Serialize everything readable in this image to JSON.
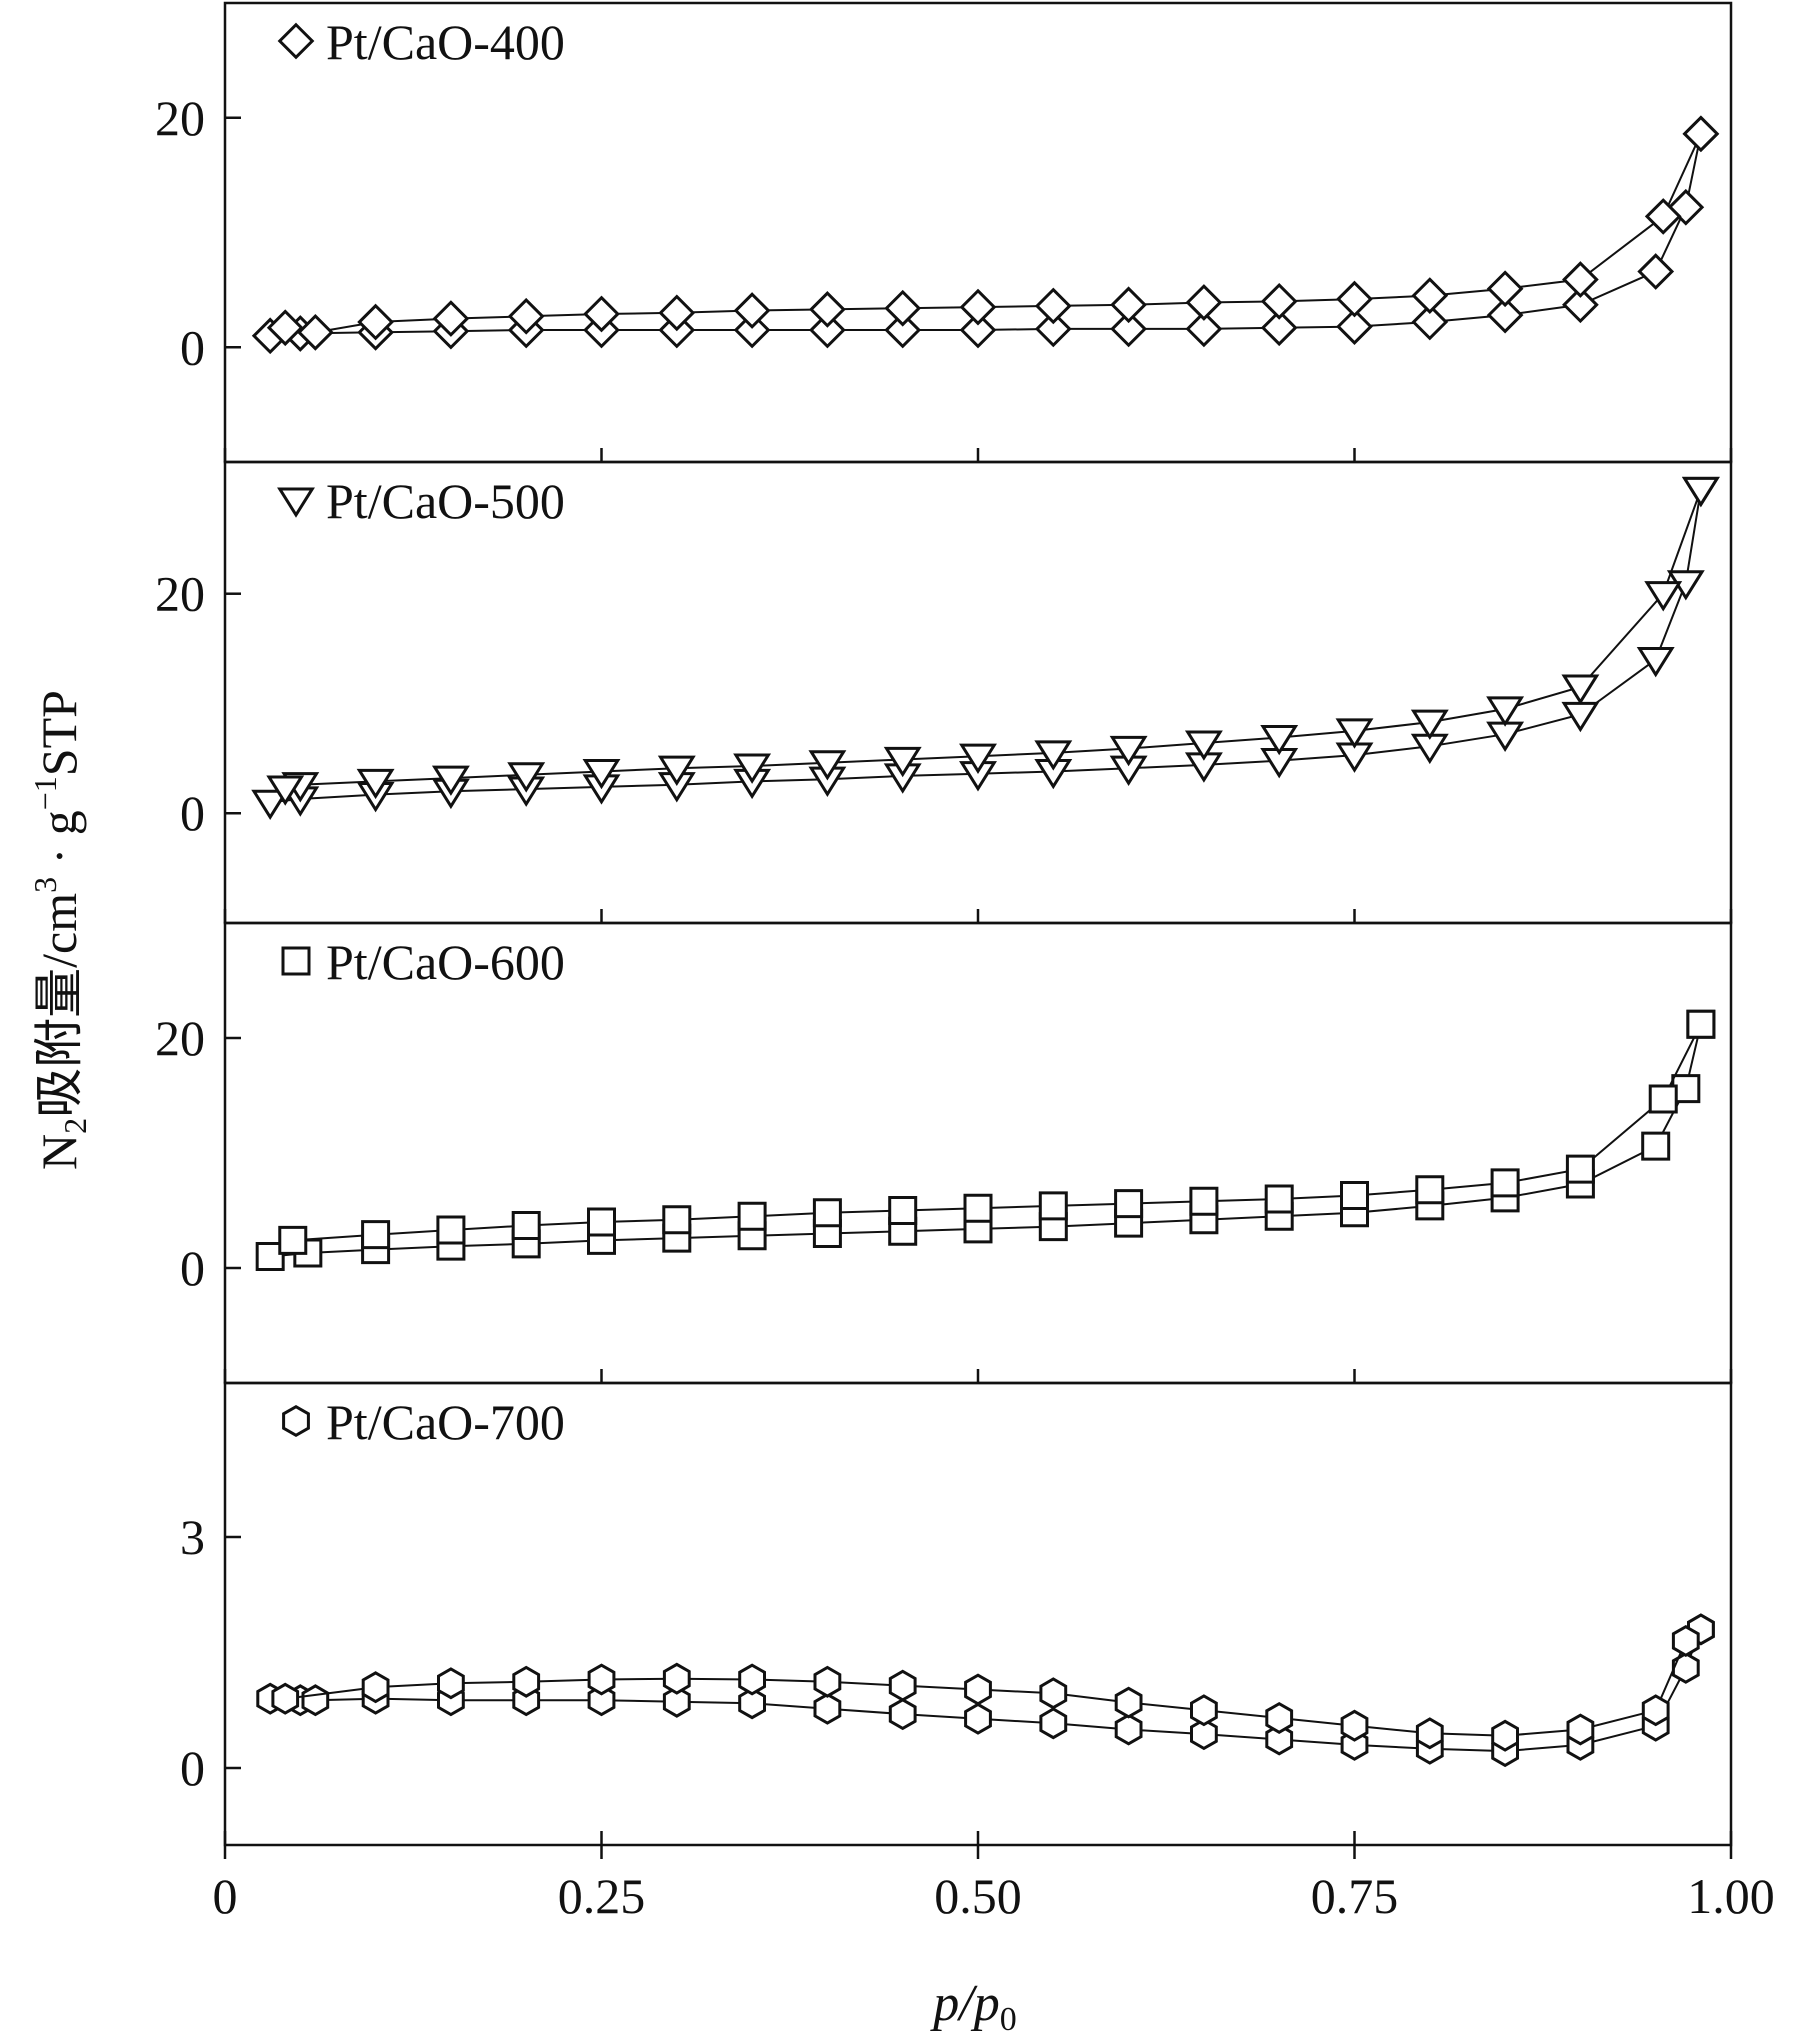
{
  "chart_data": {
    "type": "scatter",
    "xlabel": "p/p",
    "xlabel_sub": "0",
    "ylabel": {
      "n": "N",
      "n_sub": "2",
      "text": "吸附量/cm",
      "cm_exp": "3",
      "mid": " · g",
      "g_exp": "−1",
      "tail": "STP"
    },
    "xlim": [
      0,
      1.0
    ],
    "xticks": [
      0,
      0.25,
      0.5,
      0.75,
      1.0
    ],
    "xtick_labels": [
      "0",
      "0.25",
      "0.50",
      "0.75",
      "1.00"
    ],
    "panels": [
      {
        "name": "Pt/CaO-400",
        "marker": "diamond",
        "ylim": [
          -10,
          30
        ],
        "yticks": [
          0,
          20
        ],
        "ytick_labels": [
          "0",
          "20"
        ],
        "adsorption": {
          "x": [
            0.03,
            0.05,
            0.1,
            0.15,
            0.2,
            0.25,
            0.3,
            0.35,
            0.4,
            0.45,
            0.5,
            0.55,
            0.6,
            0.65,
            0.7,
            0.75,
            0.8,
            0.85,
            0.9,
            0.95,
            0.97,
            0.98
          ],
          "y": [
            1.0,
            1.2,
            1.3,
            1.4,
            1.5,
            1.5,
            1.5,
            1.5,
            1.5,
            1.5,
            1.5,
            1.6,
            1.6,
            1.6,
            1.7,
            1.8,
            2.2,
            2.8,
            3.7,
            6.6,
            12.2,
            18.6
          ]
        },
        "desorption": {
          "x": [
            0.98,
            0.955,
            0.9,
            0.85,
            0.8,
            0.75,
            0.7,
            0.65,
            0.6,
            0.55,
            0.5,
            0.45,
            0.4,
            0.35,
            0.3,
            0.25,
            0.2,
            0.15,
            0.1,
            0.06,
            0.04
          ],
          "y": [
            18.6,
            11.4,
            5.9,
            5.1,
            4.5,
            4.2,
            4.0,
            3.9,
            3.7,
            3.6,
            3.5,
            3.4,
            3.3,
            3.2,
            3.0,
            2.9,
            2.7,
            2.5,
            2.2,
            1.3,
            1.7
          ]
        }
      },
      {
        "name": "Pt/CaO-500",
        "marker": "triangle-down",
        "ylim": [
          -10,
          32
        ],
        "yticks": [
          0,
          20
        ],
        "ytick_labels": [
          "0",
          "20"
        ],
        "adsorption": {
          "x": [
            0.03,
            0.05,
            0.1,
            0.15,
            0.2,
            0.25,
            0.3,
            0.35,
            0.4,
            0.45,
            0.5,
            0.55,
            0.6,
            0.65,
            0.7,
            0.75,
            0.8,
            0.85,
            0.9,
            0.95,
            0.97,
            0.98
          ],
          "y": [
            1.0,
            1.3,
            1.7,
            2.0,
            2.2,
            2.4,
            2.6,
            2.9,
            3.1,
            3.4,
            3.6,
            3.8,
            4.1,
            4.4,
            4.8,
            5.3,
            6.1,
            7.2,
            9.0,
            14.0,
            21.0,
            29.5
          ]
        },
        "desorption": {
          "x": [
            0.98,
            0.955,
            0.9,
            0.85,
            0.8,
            0.75,
            0.7,
            0.65,
            0.6,
            0.55,
            0.5,
            0.45,
            0.4,
            0.35,
            0.3,
            0.25,
            0.2,
            0.15,
            0.1,
            0.05,
            0.04
          ],
          "y": [
            29.5,
            20.0,
            11.5,
            9.5,
            8.3,
            7.5,
            6.9,
            6.4,
            5.9,
            5.5,
            5.2,
            4.9,
            4.6,
            4.3,
            4.1,
            3.8,
            3.5,
            3.2,
            2.9,
            2.6,
            2.3
          ]
        }
      },
      {
        "name": "Pt/CaO-600",
        "marker": "square",
        "ylim": [
          -10,
          30
        ],
        "yticks": [
          0,
          20
        ],
        "ytick_labels": [
          "0",
          "20"
        ],
        "adsorption": {
          "x": [
            0.03,
            0.055,
            0.1,
            0.15,
            0.2,
            0.25,
            0.3,
            0.35,
            0.4,
            0.45,
            0.5,
            0.55,
            0.6,
            0.65,
            0.7,
            0.75,
            0.8,
            0.85,
            0.9,
            0.95,
            0.97,
            0.98
          ],
          "y": [
            1.0,
            1.3,
            1.6,
            1.9,
            2.1,
            2.4,
            2.6,
            2.8,
            3.0,
            3.2,
            3.4,
            3.6,
            3.9,
            4.2,
            4.5,
            4.8,
            5.4,
            6.1,
            7.3,
            10.6,
            15.6,
            21.2
          ]
        },
        "desorption": {
          "x": [
            0.98,
            0.955,
            0.9,
            0.85,
            0.8,
            0.75,
            0.7,
            0.65,
            0.6,
            0.55,
            0.5,
            0.45,
            0.4,
            0.35,
            0.3,
            0.25,
            0.2,
            0.15,
            0.1,
            0.045
          ],
          "y": [
            21.2,
            14.7,
            8.6,
            7.4,
            6.8,
            6.3,
            6.0,
            5.8,
            5.6,
            5.4,
            5.2,
            5.0,
            4.8,
            4.5,
            4.2,
            4.0,
            3.7,
            3.3,
            2.9,
            2.4
          ]
        }
      },
      {
        "name": "Pt/CaO-700",
        "marker": "hexagon",
        "ylim": [
          -1,
          5
        ],
        "yticks": [
          0,
          3
        ],
        "ytick_labels": [
          "0",
          "3"
        ],
        "adsorption": {
          "x": [
            0.03,
            0.05,
            0.06,
            0.1,
            0.15,
            0.2,
            0.25,
            0.3,
            0.35,
            0.4,
            0.45,
            0.5,
            0.55,
            0.6,
            0.65,
            0.7,
            0.75,
            0.8,
            0.85,
            0.9,
            0.95,
            0.97,
            0.98
          ],
          "y": [
            0.9,
            0.88,
            0.88,
            0.9,
            0.88,
            0.88,
            0.88,
            0.86,
            0.84,
            0.77,
            0.7,
            0.64,
            0.58,
            0.5,
            0.44,
            0.37,
            0.3,
            0.25,
            0.22,
            0.3,
            0.55,
            1.3,
            1.8
          ]
        },
        "desorption": {
          "x": [
            0.98,
            0.97,
            0.95,
            0.9,
            0.85,
            0.8,
            0.75,
            0.7,
            0.65,
            0.6,
            0.55,
            0.5,
            0.45,
            0.4,
            0.35,
            0.3,
            0.25,
            0.2,
            0.15,
            0.1,
            0.04
          ],
          "y": [
            1.8,
            1.65,
            0.75,
            0.5,
            0.42,
            0.45,
            0.55,
            0.65,
            0.75,
            0.85,
            0.97,
            1.02,
            1.07,
            1.12,
            1.15,
            1.16,
            1.15,
            1.12,
            1.1,
            1.05,
            0.9
          ]
        }
      }
    ]
  }
}
